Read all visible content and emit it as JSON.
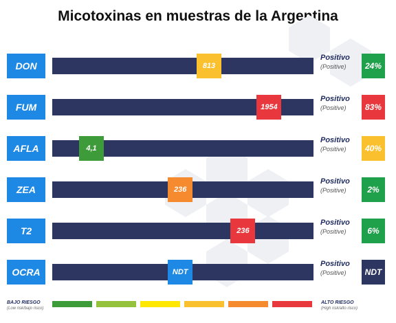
{
  "title": "Micotoxinas en muestras de la Argentina",
  "positive_label": "Positivo",
  "positive_sublabel": "(Positive)",
  "legend": {
    "low_label": "BAJO RIESGO",
    "low_sub": "(Low risk/bajo risco)",
    "high_label": "ALTO RIESGO",
    "high_sub": "(High risk/alto risco)",
    "scale_colors": [
      "#3e9b3a",
      "#95c23d",
      "#ffe700",
      "#fbc02d",
      "#f58a2f",
      "#e8383d"
    ]
  },
  "chart_data": {
    "type": "table",
    "title": "Micotoxinas en muestras de la Argentina",
    "rows": [
      {
        "toxin": "DON",
        "value_label": "813",
        "risk_level": 4,
        "marker_color": "#fbc02d",
        "positive_pct": "24%",
        "pct_color": "#1fa04a"
      },
      {
        "toxin": "FUM",
        "value_label": "1954",
        "risk_level": 6,
        "marker_color": "#e8383d",
        "positive_pct": "83%",
        "pct_color": "#e8383d"
      },
      {
        "toxin": "AFLA",
        "value_label": "4,1",
        "risk_level": 1,
        "marker_color": "#3e9b3a",
        "positive_pct": "40%",
        "pct_color": "#fbc02d"
      },
      {
        "toxin": "ZEA",
        "value_label": "236",
        "risk_level": 3,
        "marker_color": "#f58a2f",
        "positive_pct": "2%",
        "pct_color": "#1fa04a"
      },
      {
        "toxin": "T2",
        "value_label": "236",
        "risk_level": 5,
        "marker_color": "#e8383d",
        "positive_pct": "6%",
        "pct_color": "#1fa04a"
      },
      {
        "toxin": "OCRA",
        "value_label": "NDT",
        "risk_level": 3,
        "marker_color": "#1e88e5",
        "positive_pct": "NDT",
        "pct_color": "#2d3561"
      }
    ],
    "marker_position_fraction": [
      0.6,
      0.83,
      0.15,
      0.49,
      0.73,
      0.49
    ]
  }
}
